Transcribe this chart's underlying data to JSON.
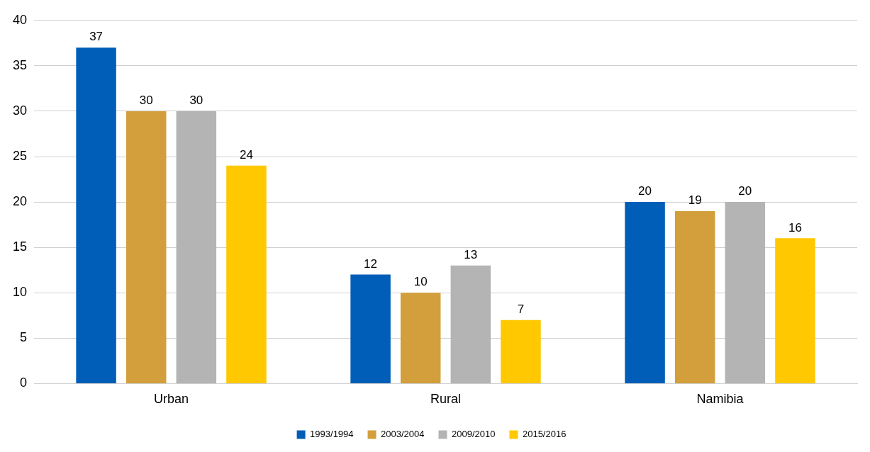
{
  "chart_data": {
    "type": "bar",
    "categories": [
      "Urban",
      "Rural",
      "Namibia"
    ],
    "series": [
      {
        "name": "1993/1994",
        "color": "#005eb8",
        "values": [
          37,
          12,
          20
        ]
      },
      {
        "name": "2003/2004",
        "color": "#d29f3c",
        "values": [
          30,
          10,
          19
        ]
      },
      {
        "name": "2009/2010",
        "color": "#b4b4b4",
        "values": [
          30,
          13,
          20
        ]
      },
      {
        "name": "2015/2016",
        "color": "#ffc800",
        "values": [
          24,
          7,
          16
        ]
      }
    ],
    "ylim": [
      0,
      40
    ],
    "yticks": [
      0,
      5,
      10,
      15,
      20,
      25,
      30,
      35,
      40
    ],
    "grid": "y",
    "legend": "bottom",
    "data_labels": true
  }
}
